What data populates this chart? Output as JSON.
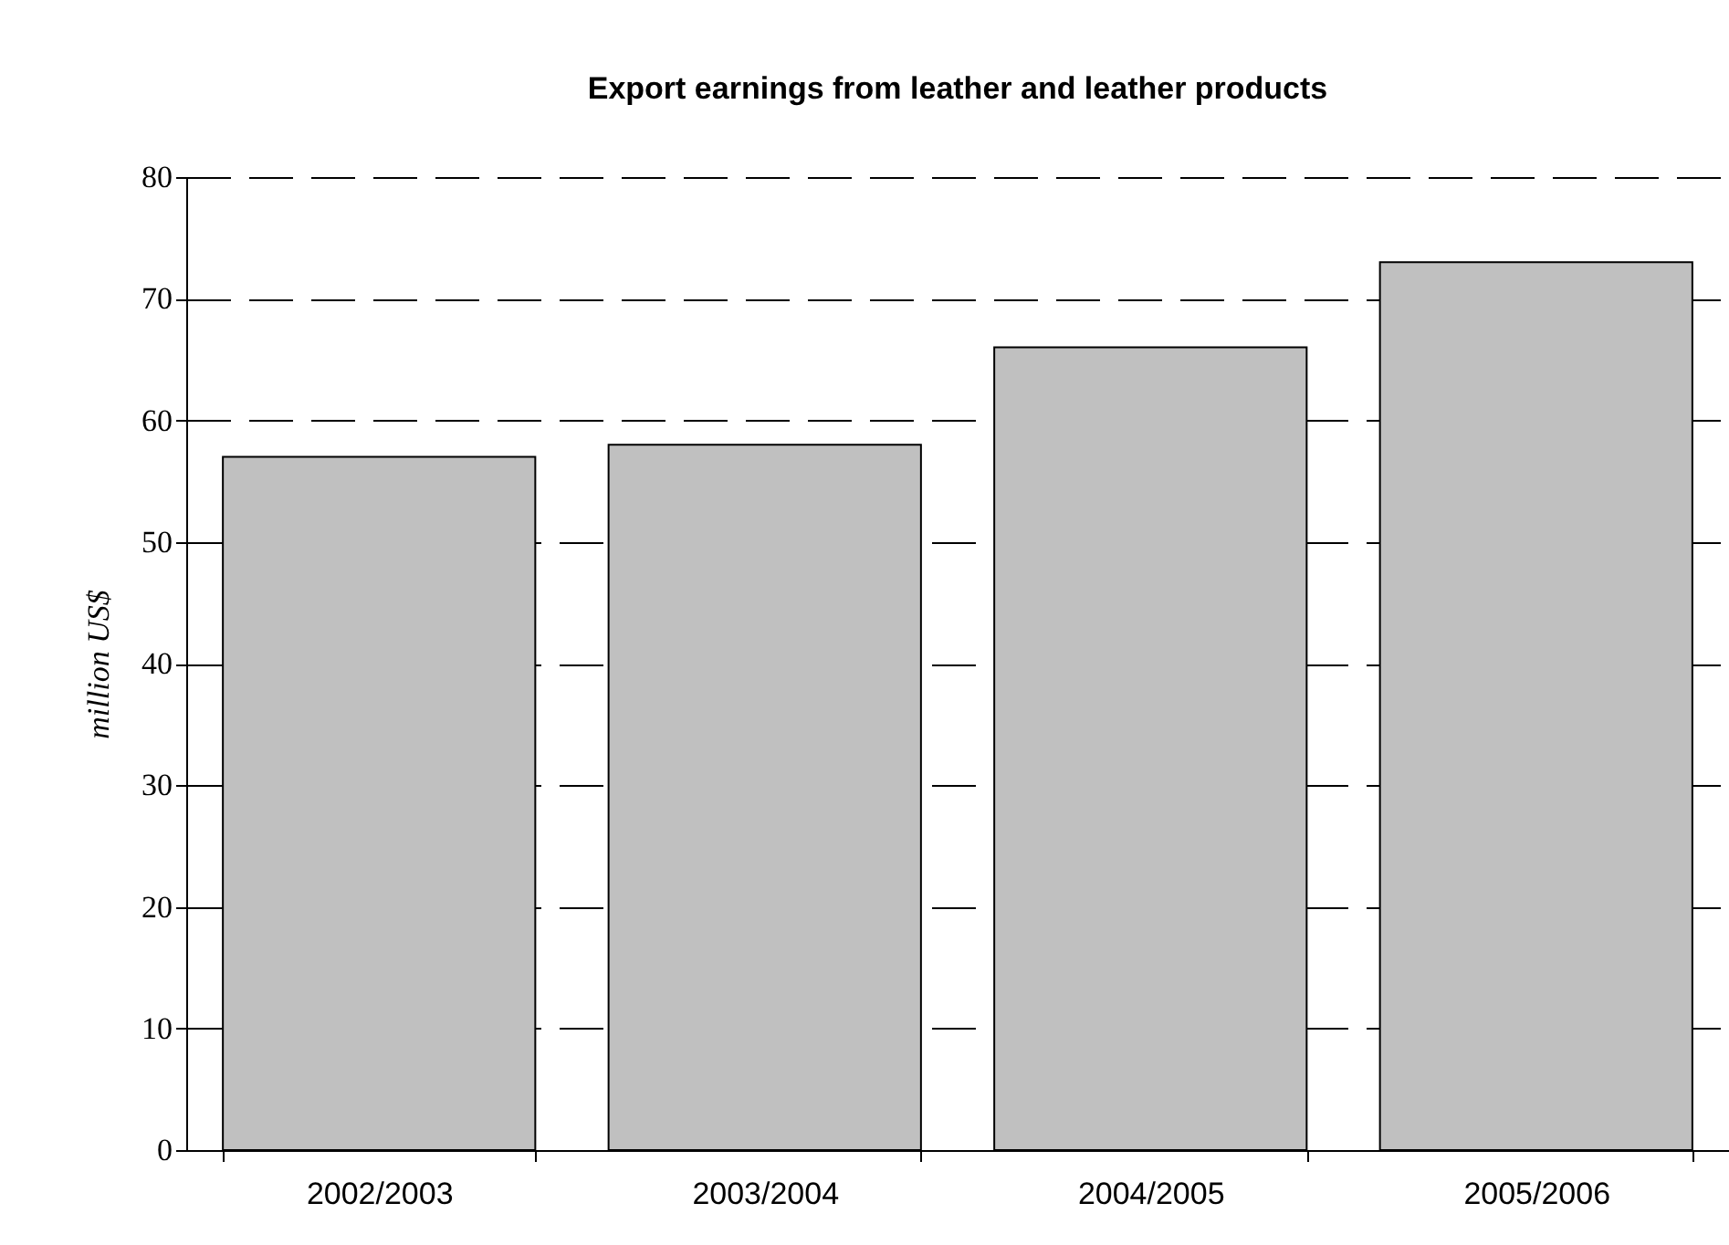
{
  "chart_data": {
    "type": "bar",
    "title": "Export earnings from leather and leather products",
    "ylabel": "million US$",
    "categories": [
      "2002/2003",
      "2003/2004",
      "2004/2005",
      "2005/2006"
    ],
    "values": [
      57,
      58,
      66,
      73
    ],
    "color": "#c0c0c0",
    "ylim": [
      0,
      80
    ],
    "yticks": [
      0,
      10,
      20,
      30,
      40,
      50,
      60,
      70,
      80
    ],
    "grid": "y"
  }
}
